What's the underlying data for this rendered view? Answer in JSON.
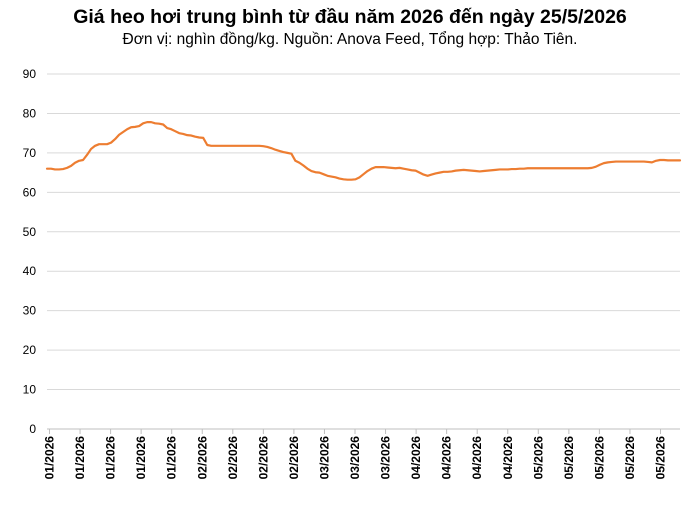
{
  "chart_data": {
    "type": "line",
    "title": "Giá heo hơi trung bình từ đầu năm 2026 đến ngày 25/5/2026",
    "subtitle": "Đơn vị: nghìn đồng/kg. Nguồn: Anova Feed, Tổng hợp: Thảo Tiên.",
    "xlabel": "",
    "ylabel": "",
    "ylim": [
      0,
      90
    ],
    "yticks": [
      0,
      10,
      20,
      30,
      40,
      50,
      60,
      70,
      80,
      90
    ],
    "grid": true,
    "legend": "none",
    "line_color": "#ED7D31",
    "x_tick_labels": [
      "01/2026",
      "01/2026",
      "01/2026",
      "01/2026",
      "01/2026",
      "02/2026",
      "02/2026",
      "02/2026",
      "02/2026",
      "03/2026",
      "03/2026",
      "03/2026",
      "04/2026",
      "04/2026",
      "04/2026",
      "04/2026",
      "05/2026",
      "05/2026",
      "05/2026",
      "05/2026",
      "05/2026"
    ],
    "series": [
      {
        "values": [
          66,
          66,
          65.8,
          65.8,
          65.9,
          66.2,
          66.7,
          67.5,
          68,
          68.2,
          69.5,
          71,
          71.8,
          72.2,
          72.2,
          72.2,
          72.6,
          73.5,
          74.6,
          75.3,
          76,
          76.5,
          76.6,
          76.8,
          77.5,
          77.8,
          77.8,
          77.5,
          77.4,
          77.2,
          76.3,
          76,
          75.5,
          75,
          74.8,
          74.5,
          74.4,
          74.1,
          73.9,
          73.8,
          72,
          71.8,
          71.8,
          71.8,
          71.8,
          71.8,
          71.8,
          71.8,
          71.8,
          71.8,
          71.8,
          71.8,
          71.8,
          71.8,
          71.7,
          71.5,
          71.2,
          70.8,
          70.5,
          70.2,
          70,
          69.8,
          68,
          67.5,
          66.8,
          66,
          65.4,
          65.1,
          65,
          64.6,
          64.2,
          64,
          63.8,
          63.5,
          63.3,
          63.2,
          63.2,
          63.3,
          63.8,
          64.6,
          65.4,
          66,
          66.4,
          66.4,
          66.4,
          66.3,
          66.2,
          66.1,
          66.2,
          66,
          65.8,
          65.6,
          65.5,
          65,
          64.5,
          64.2,
          64.5,
          64.8,
          65,
          65.2,
          65.2,
          65.3,
          65.5,
          65.6,
          65.7,
          65.6,
          65.5,
          65.4,
          65.3,
          65.4,
          65.5,
          65.6,
          65.7,
          65.8,
          65.8,
          65.8,
          65.9,
          65.9,
          66,
          66,
          66.1,
          66.1,
          66.1,
          66.1,
          66.1,
          66.1,
          66.1,
          66.1,
          66.1,
          66.1,
          66.1,
          66.1,
          66.1,
          66.1,
          66.1,
          66.1,
          66.2,
          66.5,
          67,
          67.4,
          67.6,
          67.7,
          67.8,
          67.8,
          67.8,
          67.8,
          67.8,
          67.8,
          67.8,
          67.8,
          67.7,
          67.6,
          68,
          68.2,
          68.2,
          68.1,
          68.1,
          68.1,
          68.1
        ]
      }
    ]
  }
}
